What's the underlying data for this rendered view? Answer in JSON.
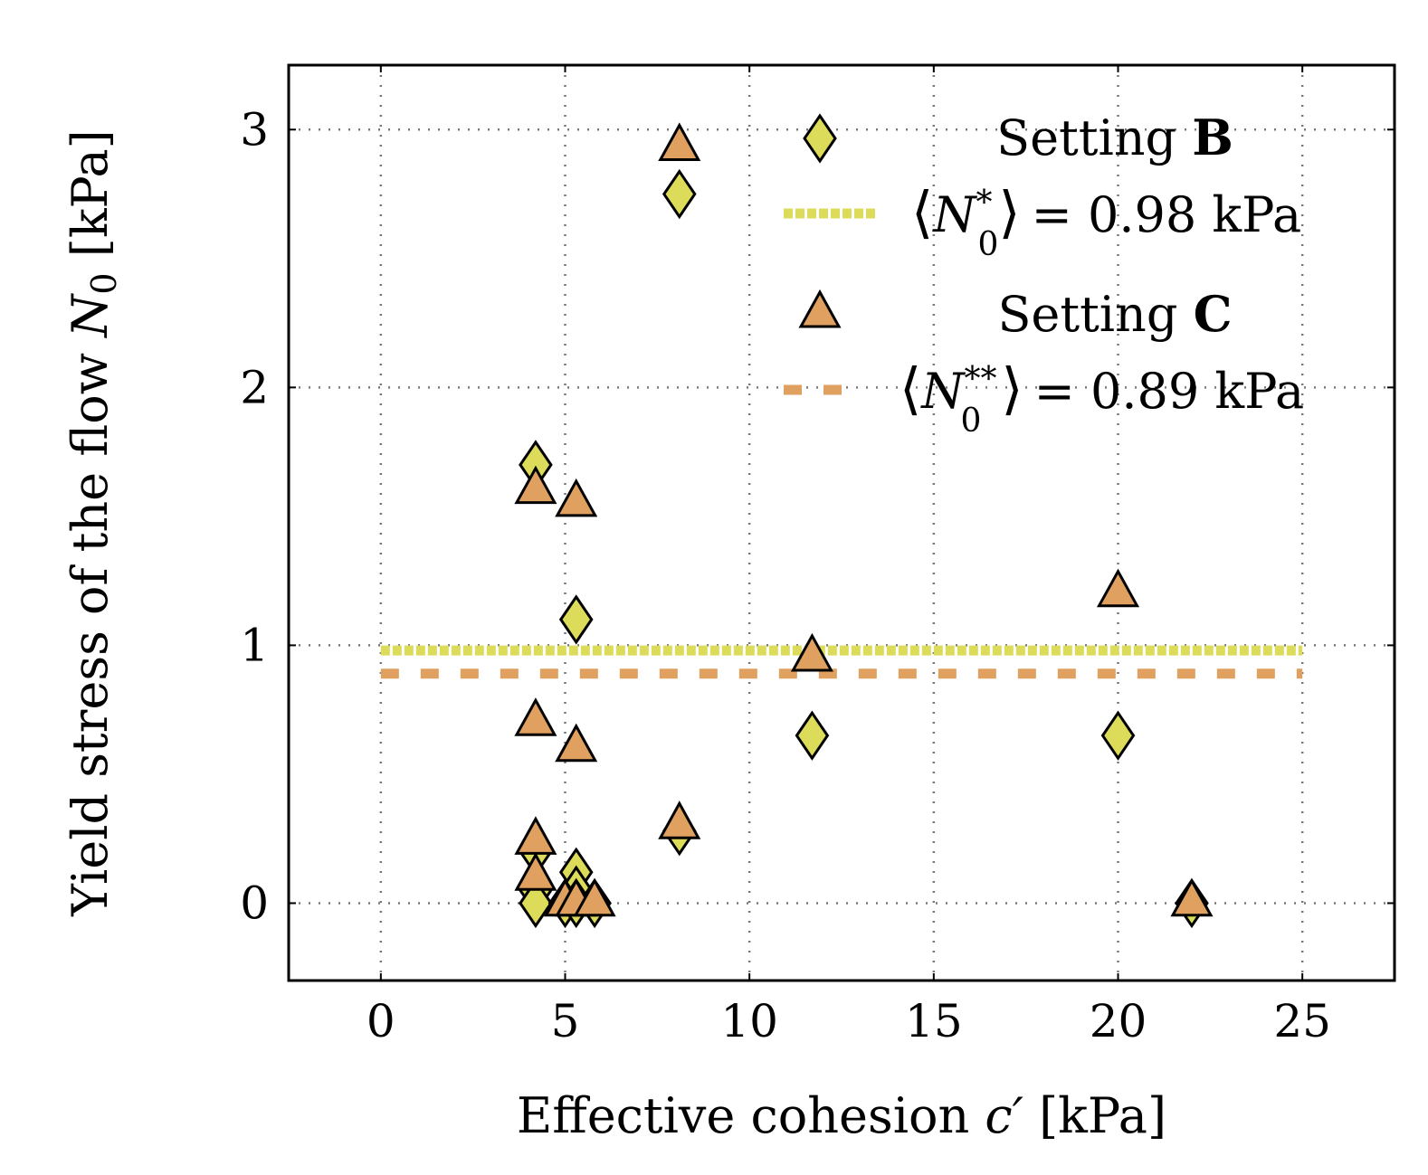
{
  "chart_data": {
    "type": "scatter",
    "xlabel": "Effective cohesion",
    "xlabel_symbol": "c′",
    "xlabel_unit": "[kPa]",
    "ylabel": "Yield stress of the flow",
    "ylabel_symbol": "N",
    "ylabel_subscript": "0",
    "ylabel_unit": "[kPa]",
    "xlim": [
      -2.5,
      27.5
    ],
    "ylim": [
      -0.3,
      3.25
    ],
    "xticks": [
      0,
      5,
      10,
      15,
      20,
      25
    ],
    "yticks": [
      0,
      1,
      2,
      3
    ],
    "grid": true,
    "legend_position": "top-right",
    "series": [
      {
        "name": "Setting B",
        "name_prefix": "Setting",
        "name_bold": "B",
        "marker": "diamond",
        "color": "#dcdc5a",
        "points": [
          {
            "x": 8.1,
            "y": 2.75
          },
          {
            "x": 4.2,
            "y": 1.7
          },
          {
            "x": 5.3,
            "y": 1.1
          },
          {
            "x": 11.7,
            "y": 0.65
          },
          {
            "x": 20.0,
            "y": 0.65
          },
          {
            "x": 8.1,
            "y": 0.28
          },
          {
            "x": 4.2,
            "y": 0.2
          },
          {
            "x": 4.2,
            "y": 0.05
          },
          {
            "x": 4.2,
            "y": 0.0
          },
          {
            "x": 5.3,
            "y": 0.12
          },
          {
            "x": 5.3,
            "y": 0.05
          },
          {
            "x": 5.0,
            "y": 0.0
          },
          {
            "x": 5.3,
            "y": 0.0
          },
          {
            "x": 5.8,
            "y": 0.0
          },
          {
            "x": 22.0,
            "y": 0.0
          }
        ]
      },
      {
        "name": "Setting C",
        "name_prefix": "Setting",
        "name_bold": "C",
        "marker": "triangle",
        "color": "#e0a060",
        "points": [
          {
            "x": 8.1,
            "y": 2.95
          },
          {
            "x": 4.2,
            "y": 1.62
          },
          {
            "x": 5.3,
            "y": 1.57
          },
          {
            "x": 20.0,
            "y": 1.22
          },
          {
            "x": 11.7,
            "y": 0.97
          },
          {
            "x": 4.2,
            "y": 0.72
          },
          {
            "x": 5.3,
            "y": 0.62
          },
          {
            "x": 8.1,
            "y": 0.32
          },
          {
            "x": 4.2,
            "y": 0.26
          },
          {
            "x": 4.2,
            "y": 0.12
          },
          {
            "x": 5.0,
            "y": 0.02
          },
          {
            "x": 5.3,
            "y": 0.02
          },
          {
            "x": 5.8,
            "y": 0.02
          },
          {
            "x": 22.0,
            "y": 0.02
          }
        ]
      }
    ],
    "reference_lines": [
      {
        "name": "mean-b",
        "y": 0.98,
        "x_range": [
          0,
          25
        ],
        "color": "#dcdc5a",
        "style": "dotted",
        "label_symbol": "N",
        "label_subscript": "0",
        "label_superscript": "*",
        "label_value": "= 0.98 kPa"
      },
      {
        "name": "mean-c",
        "y": 0.89,
        "x_range": [
          0,
          25
        ],
        "color": "#e0a060",
        "style": "dashed",
        "label_symbol": "N",
        "label_subscript": "0",
        "label_superscript": "**",
        "label_value": "= 0.89 kPa"
      }
    ]
  }
}
